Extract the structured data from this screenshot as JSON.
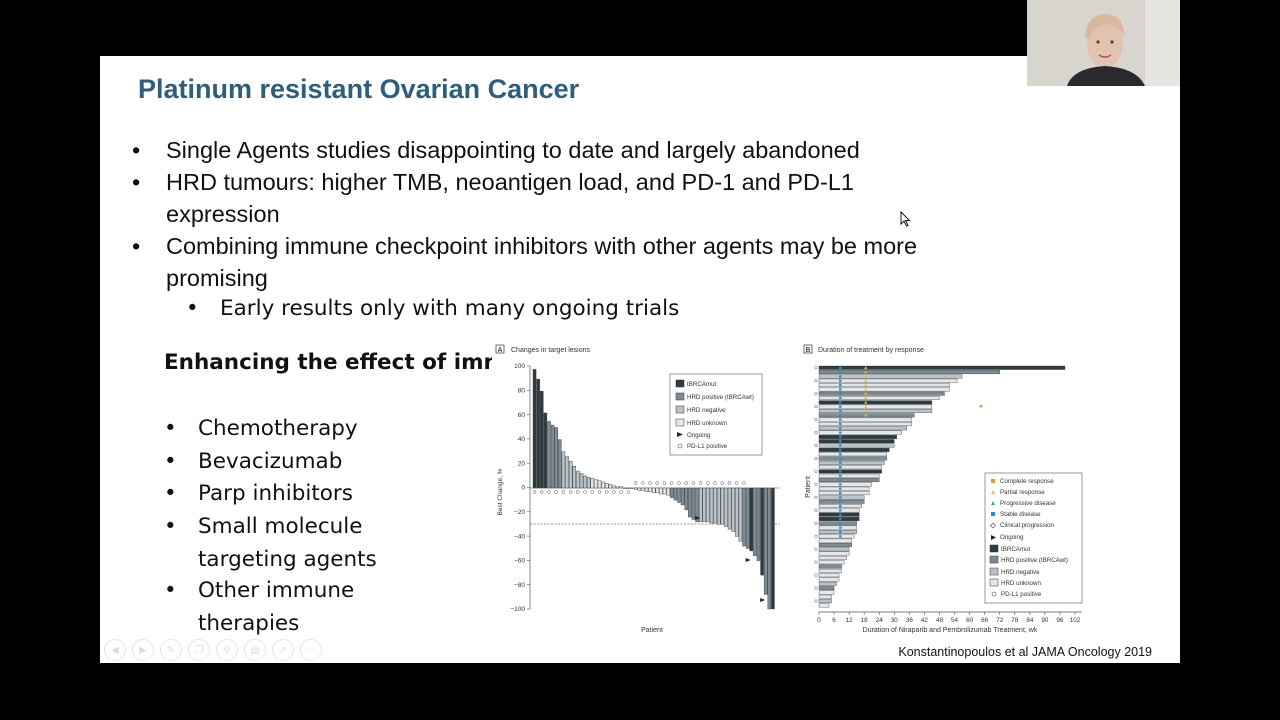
{
  "slide": {
    "title": "Platinum resistant Ovarian Cancer",
    "bullets": [
      {
        "text": "Single Agents studies disappointing to date and largely abandoned"
      },
      {
        "text": "HRD tumours: higher TMB, neoantigen load, and PD-1 and PD-L1 expression"
      },
      {
        "text": "Combining immune checkpoint inhibitors with other agents may be more promising"
      }
    ],
    "sub_bullet": "Early results only with many ongoing trials",
    "left_heading_bold": "Enhancing the effect of immune therapy",
    "left_heading_tail": ":",
    "left_items": [
      "Chemotherapy",
      "Bevacizumab",
      "Parp inhibitors",
      "Small molecule targeting agents",
      "Other immune therapies"
    ],
    "caption": "Konstantinopoulos et al JAMA Oncology 2019",
    "bullet_glyph": "•"
  },
  "figure_a": {
    "panel": "A",
    "title": "Changes in target lesions",
    "ylabel": "Best Change, %",
    "xlabel": "Patient",
    "ticks": [
      "100",
      "80",
      "60",
      "40",
      "20",
      "0",
      "−20",
      "−40",
      "−60",
      "−80",
      "−100"
    ],
    "legend": [
      "tBRCAmut",
      "HRD positive (tBRCAwt)",
      "HRD negative",
      "HRD unknown",
      "Ongoing",
      "PD-L1 positive"
    ]
  },
  "figure_b": {
    "panel": "B",
    "title": "Duration of treatment by response",
    "ylabel": "Patient",
    "xlabel": "Duration of Niraparib and Pembrolizumab Treatment, wk",
    "ticks": [
      "0",
      "6",
      "12",
      "18",
      "24",
      "30",
      "36",
      "42",
      "48",
      "54",
      "60",
      "66",
      "72",
      "78",
      "84",
      "90",
      "96",
      "102"
    ],
    "legend": [
      "Complete response",
      "Partial response",
      "Progressive disease",
      "Stable disease",
      "Clinical progression",
      "Ongoing",
      "tBRCAmut",
      "HRD positive (tBRCAwt)",
      "HRD negative",
      "HRD unknown",
      "PD-L1 positive"
    ]
  },
  "chart_data": [
    {
      "type": "bar",
      "title": "Changes in target lesions",
      "ylabel": "Best Change, %",
      "xlabel": "Patient",
      "ylim": [
        -100,
        100
      ],
      "values": [
        98,
        90,
        80,
        62,
        55,
        52,
        50,
        40,
        30,
        26,
        22,
        18,
        14,
        12,
        10,
        9,
        8,
        7,
        6,
        5,
        4,
        3,
        2,
        1,
        1,
        0,
        0,
        0,
        -1,
        -2,
        -2,
        -3,
        -3,
        -4,
        -4,
        -5,
        -5,
        -6,
        -8,
        -10,
        -12,
        -14,
        -18,
        -24,
        -26,
        -28,
        -28,
        -28,
        -28,
        -29,
        -29,
        -30,
        -30,
        -32,
        -34,
        -36,
        -40,
        -44,
        -48,
        -50,
        -52,
        -56,
        -60,
        -72,
        -88,
        -100,
        -100
      ]
    },
    {
      "type": "bar",
      "title": "Duration of treatment by response",
      "ylabel": "Patient",
      "xlabel": "Duration of Niraparib and Pembrolizumab Treatment, wk",
      "xlim": [
        0,
        102
      ],
      "values": [
        98,
        72,
        57,
        55,
        52,
        52,
        50,
        48,
        45,
        45,
        45,
        38,
        37,
        37,
        35,
        33,
        31,
        30,
        30,
        28,
        27,
        27,
        26,
        25,
        25,
        24,
        24,
        21,
        20,
        20,
        18,
        18,
        17,
        16,
        16,
        16,
        15,
        15,
        15,
        14,
        13,
        13,
        12,
        12,
        11,
        10,
        9,
        9,
        8,
        8,
        7,
        6,
        6,
        5,
        5,
        4
      ]
    }
  ],
  "colors": {
    "title": "#2f5d7c",
    "tbrca": "#2d3c40",
    "hrdpos": "#7d8c94",
    "hrdneg": "#b9c3c9",
    "hrdunk": "#e3e7ea",
    "sd": "#2a8fd6",
    "pr": "#e2c23a",
    "cr": "#e39a2c"
  }
}
